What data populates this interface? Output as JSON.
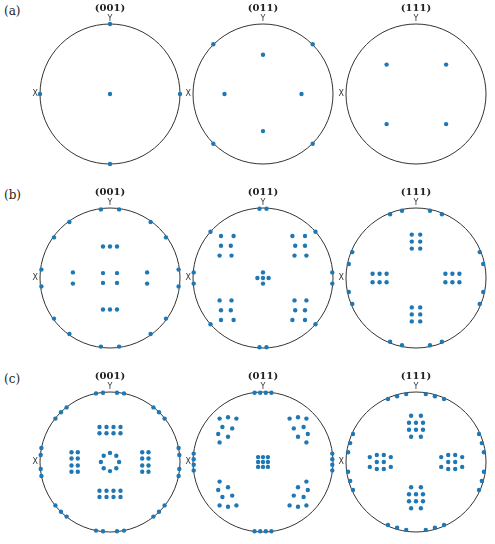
{
  "figure_labels": [
    "(a)",
    "(b)",
    "(c)"
  ],
  "chart_data": [
    {
      "type": "scatter",
      "title": "(001)",
      "xlabel": "X",
      "ylabel": "Y",
      "color": "#1f77b4",
      "marker": "circle",
      "grid": false,
      "tick_labels": false,
      "xlim": [
        -1,
        1
      ],
      "ylim": [
        -1,
        1
      ],
      "x": [
        0,
        1,
        -1,
        0,
        0
      ],
      "values": [
        0,
        0,
        0,
        1,
        -1
      ]
    },
    {
      "type": "scatter",
      "title": "(011)",
      "xlabel": "X",
      "ylabel": "Y",
      "color": "#1f77b4",
      "marker": "circle",
      "grid": false,
      "tick_labels": false,
      "xlim": [
        -1,
        1
      ],
      "ylim": [
        -1,
        1
      ],
      "x": [
        0,
        -0.55,
        0.55,
        0,
        -0.71,
        0.71,
        -0.71,
        0.71
      ],
      "values": [
        0.56,
        0,
        0,
        -0.53,
        0.71,
        0.71,
        -0.71,
        -0.71
      ]
    },
    {
      "type": "scatter",
      "title": "(111)",
      "xlabel": "X",
      "ylabel": "Y",
      "color": "#1f77b4",
      "marker": "circle",
      "grid": false,
      "tick_labels": false,
      "xlim": [
        -1,
        1
      ],
      "ylim": [
        -1,
        1
      ],
      "x": [
        -0.42,
        0.43,
        -0.42,
        0.43
      ],
      "values": [
        0.42,
        0.42,
        -0.43,
        -0.43
      ]
    },
    {
      "type": "scatter",
      "title": "(001)",
      "xlabel": "X",
      "ylabel": "Y",
      "color": "#1f77b4",
      "marker": "circle",
      "grid": false,
      "tick_labels": false,
      "xlim": [
        -1,
        1
      ],
      "ylim": [
        -1,
        1
      ],
      "x": [
        -0.1,
        0.1,
        -0.1,
        0.1,
        -0.53,
        -0.53,
        0.53,
        0.53,
        -0.1,
        0,
        0.1,
        -0.1,
        0,
        0.1,
        -0.13,
        0.13,
        -0.13,
        0.13,
        -0.98,
        -0.98,
        0.98,
        0.98,
        -0.8,
        -0.58,
        0.8,
        0.58,
        -0.8,
        -0.58,
        0.8,
        0.58
      ],
      "values": [
        0.07,
        0.07,
        -0.07,
        -0.07,
        0.08,
        -0.08,
        0.08,
        -0.08,
        0.45,
        0.45,
        0.45,
        -0.45,
        -0.45,
        -0.45,
        0.98,
        0.98,
        -0.98,
        -0.98,
        0.12,
        -0.12,
        0.12,
        -0.12,
        0.58,
        0.8,
        0.58,
        0.8,
        -0.58,
        -0.8,
        -0.58,
        -0.8
      ]
    },
    {
      "type": "scatter",
      "title": "(011)",
      "xlabel": "X",
      "ylabel": "Y",
      "color": "#1f77b4",
      "marker": "circle",
      "grid": false,
      "tick_labels": false,
      "xlim": [
        -1,
        1
      ],
      "ylim": [
        -1,
        1
      ],
      "x": [
        0,
        -0.08,
        0,
        0.08,
        0,
        -0.6,
        -0.42,
        -0.6,
        -0.46,
        -0.62,
        -0.45,
        0.6,
        0.42,
        0.6,
        0.46,
        0.62,
        0.45,
        -0.6,
        -0.42,
        -0.6,
        -0.46,
        -0.62,
        -0.45,
        0.6,
        0.42,
        0.6,
        0.46,
        0.62,
        0.45,
        -0.05,
        0.05,
        -0.05,
        0.05,
        -0.99,
        -0.99,
        0.99,
        0.99,
        -0.75,
        0.75,
        -0.75,
        0.75
      ],
      "values": [
        0.08,
        0,
        0,
        0,
        -0.08,
        0.6,
        0.6,
        0.46,
        0.46,
        0.32,
        0.32,
        0.6,
        0.6,
        0.46,
        0.46,
        0.32,
        0.32,
        -0.6,
        -0.6,
        -0.46,
        -0.46,
        -0.32,
        -0.32,
        -0.6,
        -0.6,
        -0.46,
        -0.46,
        -0.32,
        -0.32,
        0.99,
        0.99,
        -0.99,
        -0.99,
        0.08,
        -0.08,
        0.08,
        -0.08,
        0.66,
        0.66,
        -0.66,
        -0.66
      ]
    },
    {
      "type": "scatter",
      "title": "(111)",
      "xlabel": "X",
      "ylabel": "Y",
      "color": "#1f77b4",
      "marker": "circle",
      "grid": false,
      "tick_labels": false,
      "xlim": [
        -1,
        1
      ],
      "ylim": [
        -1,
        1
      ],
      "x": [
        -0.06,
        0.06,
        -0.06,
        0.06,
        -0.06,
        0.06,
        -0.06,
        0.06,
        -0.06,
        0.06,
        -0.06,
        0.06,
        -0.62,
        -0.52,
        -0.42,
        -0.62,
        -0.52,
        -0.42,
        0.62,
        0.52,
        0.42,
        0.62,
        0.52,
        0.42,
        0.96,
        0.91,
        0.37,
        0.2,
        -0.96,
        -0.91,
        -0.37,
        -0.2,
        0.96,
        0.91,
        0.37,
        0.2,
        -0.96,
        -0.91,
        -0.37,
        -0.2
      ],
      "values": [
        0.62,
        0.62,
        0.52,
        0.52,
        0.42,
        0.42,
        -0.62,
        -0.62,
        -0.52,
        -0.52,
        -0.42,
        -0.42,
        0.06,
        0.06,
        0.06,
        -0.06,
        -0.06,
        -0.06,
        0.06,
        0.06,
        0.06,
        -0.06,
        -0.06,
        -0.06,
        0.2,
        0.37,
        0.91,
        0.96,
        0.2,
        0.37,
        0.91,
        0.96,
        -0.2,
        -0.37,
        -0.91,
        -0.96,
        -0.2,
        -0.37,
        -0.91,
        -0.96
      ]
    },
    {
      "type": "scatter",
      "title": "(001)",
      "xlabel": "X",
      "ylabel": "Y",
      "color": "#1f77b4",
      "marker": "circle",
      "grid": false,
      "tick_labels": false,
      "xlim": [
        -1,
        1
      ],
      "ylim": [
        -1,
        1
      ],
      "x": [
        0.13,
        0.09,
        0,
        -0.09,
        -0.13,
        -0.09,
        0,
        0.09,
        -0.15,
        -0.05,
        0.05,
        0.15,
        -0.15,
        -0.05,
        0.05,
        0.15,
        -0.15,
        -0.05,
        0.05,
        0.15,
        -0.15,
        -0.05,
        0.05,
        0.15,
        -0.55,
        -0.46,
        -0.55,
        -0.46,
        -0.55,
        -0.46,
        -0.55,
        -0.46,
        0.55,
        0.46,
        0.55,
        0.46,
        0.55,
        0.46,
        0.55,
        0.46,
        -0.2,
        -0.1,
        0.1,
        0.2,
        -0.2,
        -0.1,
        0.1,
        0.2,
        -0.98,
        -0.99,
        -0.99,
        -0.98,
        0.98,
        0.99,
        0.99,
        0.98,
        0.62,
        0.7,
        0.78,
        -0.62,
        -0.7,
        -0.78,
        0.62,
        0.7,
        0.78,
        -0.62,
        -0.7,
        -0.78
      ],
      "values": [
        0,
        0.09,
        0.13,
        0.09,
        0,
        -0.09,
        -0.13,
        -0.09,
        0.5,
        0.5,
        0.5,
        0.5,
        0.41,
        0.41,
        0.41,
        0.41,
        -0.41,
        -0.41,
        -0.41,
        -0.41,
        -0.5,
        -0.5,
        -0.5,
        -0.5,
        0.14,
        0.14,
        0.05,
        0.05,
        -0.05,
        -0.05,
        -0.14,
        -0.14,
        0.14,
        0.14,
        0.05,
        0.05,
        -0.05,
        -0.05,
        -0.14,
        -0.14,
        0.98,
        0.99,
        0.99,
        0.98,
        -0.98,
        -0.99,
        -0.99,
        -0.98,
        0.2,
        0.1,
        -0.1,
        -0.2,
        0.2,
        0.1,
        -0.1,
        -0.2,
        0.78,
        0.71,
        0.62,
        0.78,
        0.71,
        0.62,
        -0.78,
        -0.71,
        -0.62,
        -0.78,
        -0.71,
        -0.62
      ]
    },
    {
      "type": "scatter",
      "title": "(011)",
      "xlabel": "X",
      "ylabel": "Y",
      "color": "#1f77b4",
      "marker": "circle",
      "grid": false,
      "tick_labels": false,
      "xlim": [
        -1,
        1
      ],
      "ylim": [
        -1,
        1
      ],
      "x": [
        -0.07,
        0,
        0.07,
        -0.07,
        0,
        0.07,
        -0.07,
        0,
        0.07,
        -0.62,
        -0.5,
        -0.38,
        -0.58,
        -0.44,
        -0.64,
        -0.5,
        -0.62,
        0.62,
        0.5,
        0.38,
        0.58,
        0.44,
        0.64,
        0.5,
        0.62,
        -0.62,
        -0.5,
        -0.38,
        -0.58,
        -0.44,
        -0.64,
        -0.5,
        -0.62,
        0.62,
        0.5,
        0.38,
        0.58,
        0.44,
        0.64,
        0.5,
        0.62,
        -0.12,
        -0.04,
        0.04,
        0.12,
        -0.12,
        -0.04,
        0.04,
        0.12,
        -0.99,
        -0.99,
        -0.99,
        -0.99,
        0.99,
        0.99,
        0.99,
        0.99
      ],
      "values": [
        0.07,
        0.07,
        0.07,
        0,
        0,
        0,
        -0.07,
        -0.07,
        -0.07,
        0.62,
        0.64,
        0.62,
        0.5,
        0.48,
        0.4,
        0.36,
        0.28,
        0.62,
        0.64,
        0.62,
        0.5,
        0.48,
        0.4,
        0.36,
        0.28,
        -0.62,
        -0.64,
        -0.62,
        -0.5,
        -0.48,
        -0.4,
        -0.36,
        -0.28,
        -0.62,
        -0.64,
        -0.62,
        -0.5,
        -0.48,
        -0.4,
        -0.36,
        -0.28,
        0.99,
        0.99,
        0.99,
        0.99,
        -0.99,
        -0.99,
        -0.99,
        -0.99,
        0.12,
        0.04,
        -0.04,
        -0.12,
        0.12,
        0.04,
        -0.04,
        -0.12
      ]
    },
    {
      "type": "scatter",
      "title": "(111)",
      "xlabel": "X",
      "ylabel": "Y",
      "color": "#1f77b4",
      "marker": "circle",
      "grid": false,
      "tick_labels": false,
      "xlim": [
        -1,
        1
      ],
      "ylim": [
        -1,
        1
      ],
      "x": [
        -0.07,
        0.07,
        -0.1,
        0,
        0.1,
        -0.1,
        0,
        0.1,
        -0.07,
        0.07,
        -0.07,
        0.07,
        -0.1,
        0,
        0.1,
        -0.1,
        0,
        0.1,
        -0.07,
        0.07,
        -0.66,
        -0.66,
        -0.56,
        -0.56,
        -0.56,
        -0.46,
        -0.46,
        -0.46,
        -0.36,
        -0.36,
        0.66,
        0.66,
        0.56,
        0.56,
        0.56,
        0.46,
        0.46,
        0.46,
        0.36,
        0.36,
        0.97,
        0.94,
        0.9,
        0.4,
        0.27,
        0.14,
        -0.97,
        -0.94,
        -0.9,
        -0.4,
        -0.27,
        -0.14,
        -0.97,
        -0.94,
        -0.9,
        -0.4,
        -0.27,
        -0.14,
        0.97,
        0.94,
        0.9,
        0.4,
        0.27,
        0.14
      ],
      "values": [
        0.66,
        0.66,
        0.56,
        0.56,
        0.56,
        0.46,
        0.46,
        0.46,
        0.36,
        0.36,
        -0.66,
        -0.66,
        -0.56,
        -0.56,
        -0.56,
        -0.46,
        -0.46,
        -0.46,
        -0.36,
        -0.36,
        -0.07,
        0.07,
        -0.1,
        0,
        0.1,
        -0.1,
        0,
        0.1,
        -0.07,
        0.07,
        -0.07,
        0.07,
        -0.1,
        0,
        0.1,
        -0.1,
        0,
        0.1,
        -0.07,
        0.07,
        0.14,
        0.27,
        0.4,
        0.9,
        0.94,
        0.97,
        0.14,
        0.27,
        0.4,
        0.9,
        0.94,
        0.97,
        -0.14,
        -0.27,
        -0.4,
        -0.9,
        -0.94,
        -0.97,
        -0.14,
        -0.27,
        -0.4,
        -0.9,
        -0.94,
        -0.97
      ]
    }
  ]
}
